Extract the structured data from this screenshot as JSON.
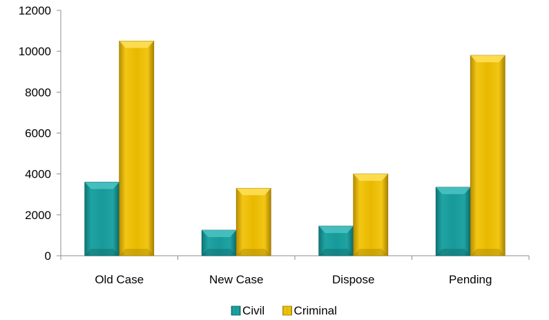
{
  "chart_data": {
    "type": "bar",
    "categories": [
      "Old Case",
      "New Case",
      "Dispose",
      "Pending"
    ],
    "series": [
      {
        "name": "Civil",
        "values": [
          3600,
          1250,
          1450,
          3350
        ],
        "color": "#1a9a9a"
      },
      {
        "name": "Criminal",
        "values": [
          10500,
          3300,
          4000,
          9800
        ],
        "color": "#e6b800"
      }
    ],
    "y_ticks": [
      "0",
      "2000",
      "4000",
      "6000",
      "8000",
      "10000",
      "12000"
    ],
    "ylim": [
      0,
      12000
    ],
    "grid": false,
    "legend_position": "bottom-center"
  }
}
